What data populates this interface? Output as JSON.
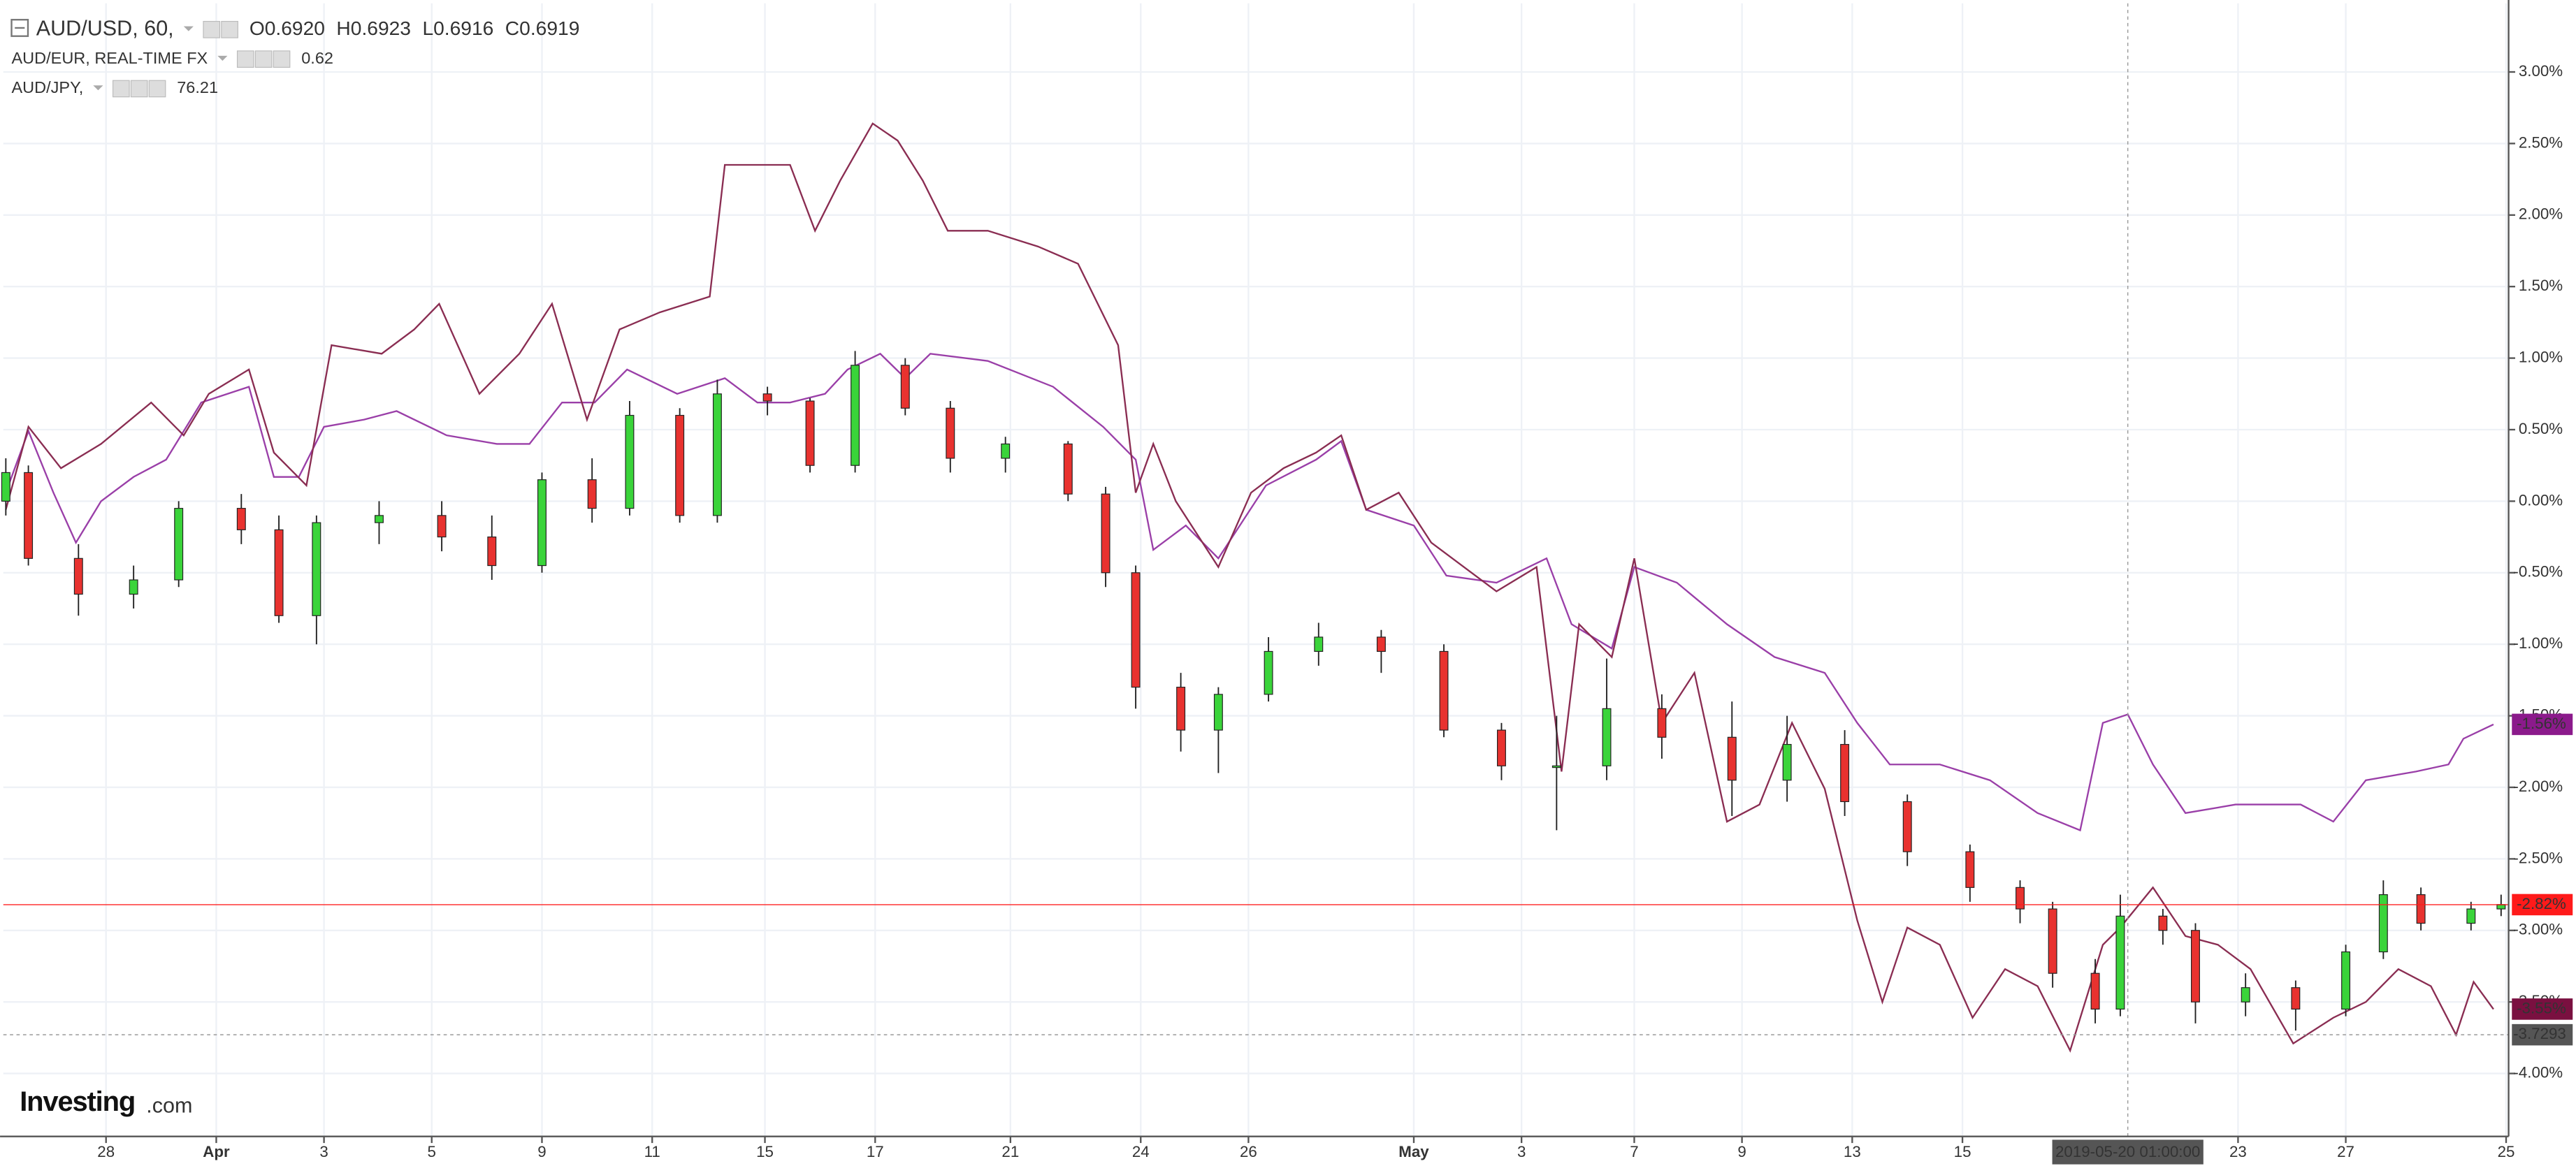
{
  "chart_data": {
    "type": "candlestick",
    "legend": [
      {
        "symbol": "AUD/USD, 60,",
        "values": [
          "O0.6920",
          "H0.6923",
          "L0.6916",
          "C0.6919"
        ]
      },
      {
        "symbol": "AUD/EUR, REAL-TIME FX",
        "values": [
          "0.62"
        ]
      },
      {
        "symbol": "AUD/JPY,",
        "values": [
          "76.21"
        ]
      }
    ],
    "logo": {
      "brand": "Investing",
      "suffix": ".com"
    },
    "xlim": [
      0,
      1000
    ],
    "xticks": [
      {
        "value": 41,
        "label": "28"
      },
      {
        "value": 85,
        "label": "Apr"
      },
      {
        "value": 128,
        "label": "3"
      },
      {
        "value": 171,
        "label": "5"
      },
      {
        "value": 215,
        "label": "9"
      },
      {
        "value": 259,
        "label": "11"
      },
      {
        "value": 304,
        "label": "15"
      },
      {
        "value": 348,
        "label": "17"
      },
      {
        "value": 402,
        "label": "21"
      },
      {
        "value": 454,
        "label": "24"
      },
      {
        "value": 497,
        "label": "26"
      },
      {
        "value": 563,
        "label": "May"
      },
      {
        "value": 606,
        "label": "3"
      },
      {
        "value": 651,
        "label": "7"
      },
      {
        "value": 694,
        "label": "9"
      },
      {
        "value": 738,
        "label": "13"
      },
      {
        "value": 782,
        "label": "15"
      },
      {
        "value": 892,
        "label": "23"
      },
      {
        "value": 935,
        "label": "27"
      },
      {
        "value": 999,
        "label": "25"
      }
    ],
    "ylim": [
      -4.44,
      3.48
    ],
    "yticks": [
      {
        "value": 3,
        "label": "3.00%"
      },
      {
        "value": 2.5,
        "label": "2.50%"
      },
      {
        "value": 2,
        "label": "2.00%"
      },
      {
        "value": 1.5,
        "label": "1.50%"
      },
      {
        "value": 1,
        "label": "1.00%"
      },
      {
        "value": 0.5,
        "label": "0.50%"
      },
      {
        "value": 0,
        "label": "0.00%"
      },
      {
        "value": -0.5,
        "label": "-0.50%"
      },
      {
        "value": -1,
        "label": "-1.00%"
      },
      {
        "value": -1.5,
        "label": "-1.50%"
      },
      {
        "value": -2,
        "label": "-2.00%"
      },
      {
        "value": -2.5,
        "label": "-2.50%"
      },
      {
        "value": -3,
        "label": "-3.00%"
      },
      {
        "value": -3.5,
        "label": "-3.50%"
      },
      {
        "value": -4,
        "label": "-4.00%"
      }
    ],
    "grid": true,
    "series": [
      {
        "name": "AUD/USD, 60,",
        "type": "candlestick",
        "up_color": "#3ad43a",
        "down_color": "#e8322f",
        "x": [
          1,
          10,
          30,
          52,
          70,
          95,
          110,
          125,
          150,
          175,
          195,
          215,
          235,
          250,
          270,
          285,
          305,
          322,
          340,
          360,
          378,
          400,
          425,
          440,
          452,
          470,
          485,
          505,
          525,
          550,
          575,
          598,
          620,
          640,
          662,
          690,
          712,
          735,
          760,
          785,
          805,
          818,
          835,
          845,
          862,
          875,
          895,
          915,
          935,
          950,
          965,
          985,
          997
        ],
        "open": [
          0,
          0.2,
          -0.4,
          -0.65,
          -0.55,
          -0.05,
          -0.2,
          -0.8,
          -0.15,
          -0.1,
          -0.25,
          -0.45,
          0.15,
          -0.05,
          0.6,
          -0.1,
          0.75,
          0.7,
          0.25,
          0.95,
          0.65,
          0.3,
          0.4,
          0.05,
          -0.5,
          -1.3,
          -1.6,
          -1.35,
          -1.05,
          -0.95,
          -1.05,
          -1.6,
          -1.85,
          -1.85,
          -1.45,
          -1.65,
          -1.95,
          -1.7,
          -2.1,
          -2.45,
          -2.7,
          -2.85,
          -3.3,
          -3.55,
          -2.9,
          -3.0,
          -3.5,
          -3.4,
          -3.55,
          -3.15,
          -2.75,
          -2.95,
          -2.85
        ],
        "high": [
          0.3,
          0.25,
          -0.3,
          -0.45,
          0,
          0.05,
          -0.1,
          -0.1,
          0,
          0,
          -0.1,
          0.2,
          0.3,
          0.7,
          0.65,
          0.85,
          0.8,
          0.72,
          1.05,
          1,
          0.7,
          0.45,
          0.42,
          0.1,
          -0.45,
          -1.2,
          -1.3,
          -0.95,
          -0.85,
          -0.9,
          -1,
          -1.55,
          -1.5,
          -1.1,
          -1.35,
          -1.4,
          -1.5,
          -1.6,
          -2.05,
          -2.4,
          -2.65,
          -2.8,
          -3.2,
          -2.75,
          -2.85,
          -2.95,
          -3.3,
          -3.35,
          -3.1,
          -2.65,
          -2.7,
          -2.8,
          -2.75
        ],
        "low": [
          -0.1,
          -0.45,
          -0.8,
          -0.75,
          -0.6,
          -0.3,
          -0.85,
          -1,
          -0.3,
          -0.35,
          -0.55,
          -0.5,
          -0.15,
          -0.1,
          -0.15,
          -0.15,
          0.6,
          0.2,
          0.2,
          0.6,
          0.2,
          0.2,
          0,
          -0.6,
          -1.45,
          -1.75,
          -1.9,
          -1.4,
          -1.15,
          -1.2,
          -1.65,
          -1.95,
          -2.3,
          -1.95,
          -1.8,
          -2.2,
          -2.1,
          -2.2,
          -2.55,
          -2.8,
          -2.95,
          -3.4,
          -3.65,
          -3.6,
          -3.1,
          -3.65,
          -3.6,
          -3.7,
          -3.6,
          -3.2,
          -3,
          -3,
          -2.9
        ],
        "close": [
          0.2,
          -0.4,
          -0.65,
          -0.55,
          -0.05,
          -0.2,
          -0.8,
          -0.15,
          -0.1,
          -0.25,
          -0.45,
          0.15,
          -0.05,
          0.6,
          -0.1,
          0.75,
          0.7,
          0.25,
          0.95,
          0.65,
          0.3,
          0.4,
          0.05,
          -0.5,
          -1.3,
          -1.6,
          -1.35,
          -1.05,
          -0.95,
          -1.05,
          -1.6,
          -1.85,
          -1.85,
          -1.45,
          -1.65,
          -1.95,
          -1.7,
          -2.1,
          -2.45,
          -2.7,
          -2.85,
          -3.3,
          -3.55,
          -2.9,
          -3,
          -3.5,
          -3.4,
          -3.55,
          -3.15,
          -2.75,
          -2.95,
          -2.85,
          -2.82
        ]
      },
      {
        "name": "AUD/EUR, REAL-TIME FX",
        "type": "line",
        "color": "#9a3fa8",
        "x": [
          1,
          10,
          20,
          29,
          39,
          52,
          65,
          79,
          98,
          108,
          118,
          128,
          144,
          157,
          177,
          197,
          210,
          223,
          236,
          249,
          269,
          288,
          301,
          314,
          328,
          337,
          350,
          360,
          370,
          393,
          419,
          439,
          452,
          459,
          472,
          485,
          504,
          524,
          534,
          544,
          563,
          576,
          596,
          616,
          626,
          642,
          651,
          668,
          688,
          707,
          727,
          740,
          753,
          773,
          793,
          812,
          829,
          838,
          848,
          858,
          871,
          891,
          917,
          930,
          943,
          963,
          976,
          982,
          994
        ],
        "values": [
          0.06,
          0.49,
          0.06,
          -0.29,
          0,
          0.17,
          0.29,
          0.69,
          0.8,
          0.17,
          0.17,
          0.52,
          0.57,
          0.63,
          0.46,
          0.4,
          0.4,
          0.69,
          0.69,
          0.92,
          0.75,
          0.86,
          0.69,
          0.69,
          0.75,
          0.92,
          1.03,
          0.86,
          1.03,
          0.98,
          0.8,
          0.52,
          0.29,
          -0.34,
          -0.17,
          -0.4,
          0.11,
          0.29,
          0.42,
          -0.06,
          -0.17,
          -0.52,
          -0.57,
          -0.4,
          -0.86,
          -1.03,
          -0.46,
          -0.57,
          -0.86,
          -1.09,
          -1.2,
          -1.55,
          -1.84,
          -1.84,
          -1.95,
          -2.18,
          -2.3,
          -1.55,
          -1.49,
          -1.84,
          -2.18,
          -2.12,
          -2.12,
          -2.24,
          -1.95,
          -1.89,
          -1.84,
          -1.66,
          -1.56
        ]
      },
      {
        "name": "AUD/JPY,",
        "type": "line",
        "color": "#8a2d52",
        "x": [
          1,
          10,
          23,
          39,
          59,
          72,
          82,
          98,
          108,
          121,
          131,
          151,
          164,
          174,
          190,
          206,
          219,
          233,
          246,
          262,
          282,
          288,
          301,
          314,
          324,
          334,
          347,
          357,
          367,
          377,
          393,
          413,
          429,
          445,
          452,
          459,
          468,
          485,
          498,
          511,
          524,
          534,
          544,
          557,
          570,
          583,
          596,
          612,
          622,
          629,
          642,
          651,
          662,
          675,
          688,
          701,
          714,
          727,
          740,
          750,
          760,
          773,
          786,
          799,
          812,
          825,
          838,
          845,
          858,
          871,
          884,
          897,
          914,
          930,
          943,
          956,
          969,
          979,
          986,
          994
        ],
        "values": [
          -0.06,
          0.52,
          0.23,
          0.4,
          0.69,
          0.46,
          0.75,
          0.92,
          0.34,
          0.11,
          1.09,
          1.03,
          1.2,
          1.38,
          0.75,
          1.03,
          1.38,
          0.57,
          1.2,
          1.32,
          1.43,
          2.35,
          2.35,
          2.35,
          1.89,
          2.24,
          2.64,
          2.52,
          2.24,
          1.89,
          1.89,
          1.78,
          1.66,
          1.09,
          0.06,
          0.4,
          0,
          -0.46,
          0.06,
          0.23,
          0.34,
          0.46,
          -0.06,
          0.06,
          -0.29,
          -0.46,
          -0.63,
          -0.46,
          -1.89,
          -0.86,
          -1.09,
          -0.4,
          -1.55,
          -1.2,
          -2.24,
          -2.12,
          -1.55,
          -2.01,
          -2.93,
          -3.5,
          -2.98,
          -3.1,
          -3.61,
          -3.27,
          -3.39,
          -3.84,
          -3.1,
          -2.98,
          -2.7,
          -3.04,
          -3.1,
          -3.27,
          -3.79,
          -3.61,
          -3.5,
          -3.27,
          -3.39,
          -3.73,
          -3.36,
          -3.55
        ]
      }
    ],
    "price_labels": [
      {
        "value": -1.56,
        "label": "-1.56%",
        "color": "#8b1a8b"
      },
      {
        "value": -2.82,
        "label": "-2.82%",
        "color": "#ff1a1a",
        "line": true
      },
      {
        "value": -3.55,
        "label": "-3.55%",
        "color": "#7a1040"
      }
    ],
    "crosshair": {
      "x": {
        "value": 848,
        "label": "2019-05-20 01:00:00"
      },
      "y": {
        "value": -3.7293,
        "label": "-3.7293"
      },
      "color": "#555555"
    }
  }
}
